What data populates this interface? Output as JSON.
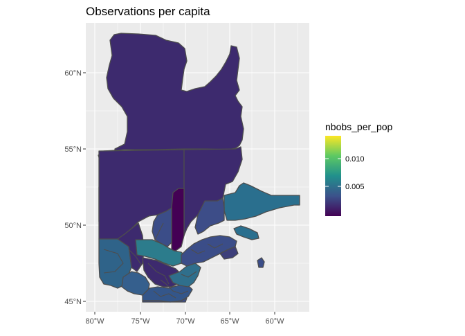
{
  "title": "Observations per capita",
  "axes": {
    "y_ticks": [
      "60°N",
      "55°N",
      "50°N",
      "45°N"
    ],
    "x_ticks": [
      "80°W",
      "75°W",
      "70°W",
      "65°W",
      "60°W"
    ]
  },
  "legend": {
    "title": "nbobs_per_pop",
    "labels": [
      "0.010",
      "0.005"
    ],
    "palette": [
      "#440154",
      "#3b528b",
      "#21908c",
      "#5dc963",
      "#fde725"
    ]
  },
  "colors": {
    "panel_bg": "#ebebeb",
    "grid": "#ffffff",
    "border": "#4d4d4d",
    "region_low": "#3d2a6e",
    "region_purple": "#4b2b73",
    "region_dark": "#440154",
    "region_blue": "#3b4d88",
    "region_teal": "#2a6f8e",
    "region_teal2": "#2c7c8c",
    "region_mid": "#355f8d"
  }
}
